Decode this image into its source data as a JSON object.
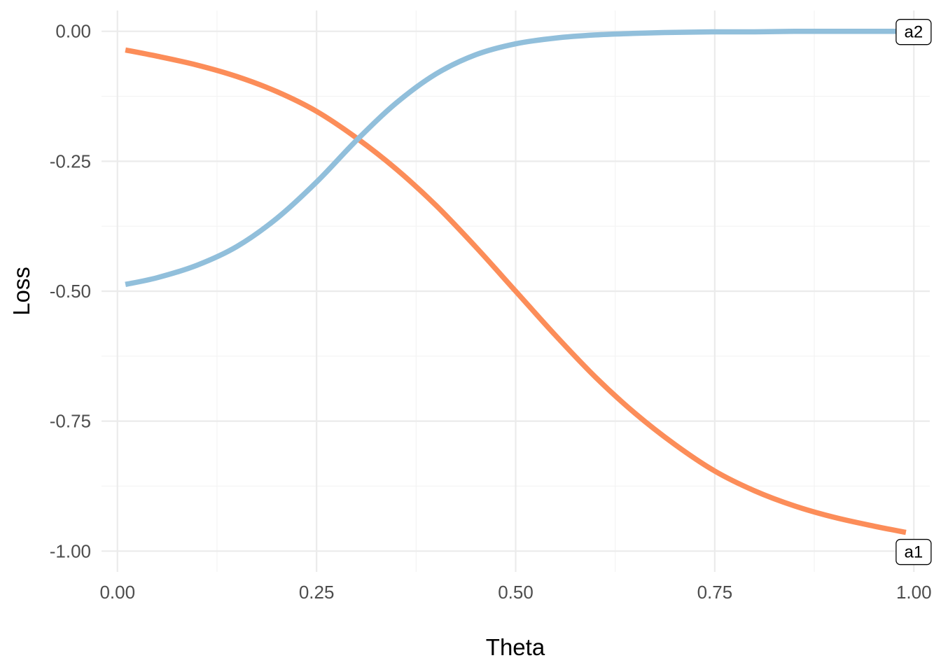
{
  "chart_data": {
    "type": "line",
    "title": "",
    "xlabel": "Theta",
    "ylabel": "Loss",
    "xlim": [
      -0.02,
      1.02
    ],
    "ylim": [
      -1.04,
      0.04
    ],
    "x_ticks": [
      0.0,
      0.25,
      0.5,
      0.75,
      1.0
    ],
    "x_tick_labels": [
      "0.00",
      "0.25",
      "0.50",
      "0.75",
      "1.00"
    ],
    "y_ticks": [
      0.0,
      -0.25,
      -0.5,
      -0.75,
      -1.0
    ],
    "y_tick_labels": [
      "0.00",
      "-0.25",
      "-0.50",
      "-0.75",
      "-1.00"
    ],
    "grid": true,
    "legend": "none",
    "series": [
      {
        "name": "a1",
        "color": "#fc8d59",
        "x": [
          0.01,
          0.05,
          0.1,
          0.15,
          0.2,
          0.25,
          0.3,
          0.35,
          0.4,
          0.45,
          0.5,
          0.55,
          0.6,
          0.65,
          0.7,
          0.75,
          0.8,
          0.85,
          0.9,
          0.95,
          0.99
        ],
        "y": [
          -0.036,
          -0.048,
          -0.065,
          -0.087,
          -0.116,
          -0.154,
          -0.205,
          -0.265,
          -0.335,
          -0.415,
          -0.5,
          -0.585,
          -0.665,
          -0.735,
          -0.795,
          -0.846,
          -0.884,
          -0.913,
          -0.935,
          -0.952,
          -0.964
        ]
      },
      {
        "name": "a2",
        "color": "#91bfdb",
        "x": [
          0.01,
          0.05,
          0.1,
          0.15,
          0.2,
          0.25,
          0.3,
          0.35,
          0.4,
          0.45,
          0.5,
          0.55,
          0.6,
          0.65,
          0.7,
          0.75,
          0.8,
          0.85,
          0.9,
          0.95,
          0.99
        ],
        "y": [
          -0.487,
          -0.474,
          -0.45,
          -0.414,
          -0.36,
          -0.29,
          -0.21,
          -0.138,
          -0.082,
          -0.045,
          -0.024,
          -0.013,
          -0.007,
          -0.004,
          -0.002,
          -0.001,
          -0.001,
          0.0,
          0.0,
          0.0,
          0.0
        ]
      }
    ]
  }
}
